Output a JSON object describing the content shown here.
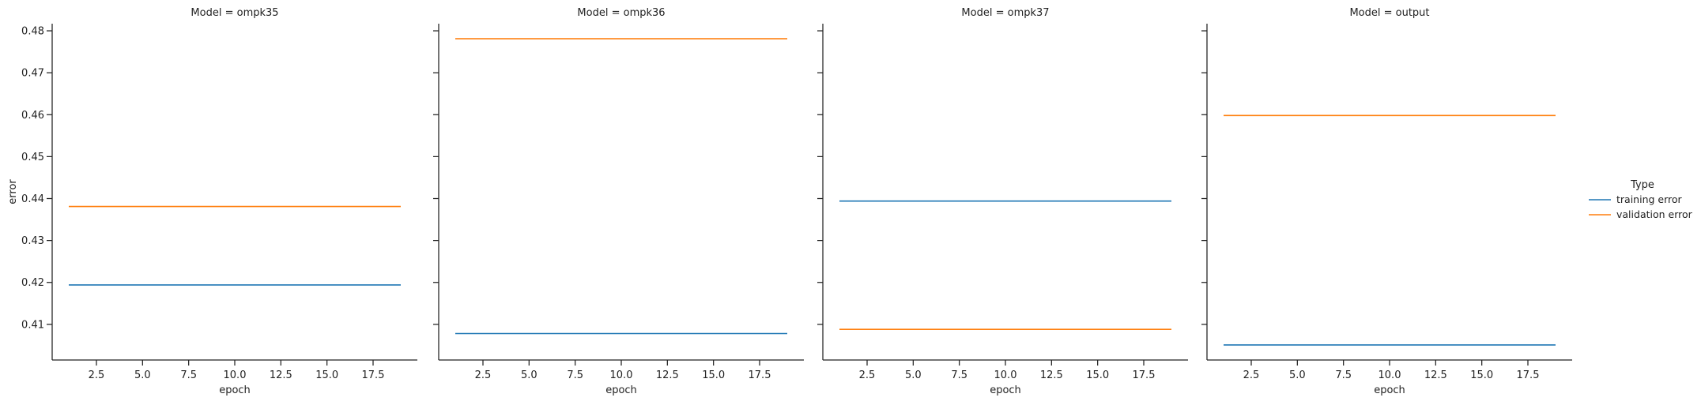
{
  "chart_data": {
    "type": "line",
    "facet_variable": "Model",
    "xlabel": "epoch",
    "ylabel": "error",
    "xlim": [
      0.1,
      19.9
    ],
    "ylim": [
      0.4015,
      0.4817
    ],
    "xticks": [
      2.5,
      5.0,
      7.5,
      10.0,
      12.5,
      15.0,
      17.5
    ],
    "yticks": [
      0.41,
      0.42,
      0.43,
      0.44,
      0.45,
      0.46,
      0.47,
      0.48
    ],
    "legend": {
      "title": "Type",
      "placement": "right",
      "entries": [
        {
          "name": "training error",
          "color": "#1f77b4"
        },
        {
          "name": "validation error",
          "color": "#ff7f0e"
        }
      ]
    },
    "panels": [
      {
        "title": "Model = ompk35",
        "series": [
          {
            "name": "training error",
            "x": [
              1,
              19
            ],
            "y": [
              0.4194,
              0.4194
            ]
          },
          {
            "name": "validation error",
            "x": [
              1,
              19
            ],
            "y": [
              0.4381,
              0.4381
            ]
          }
        ]
      },
      {
        "title": "Model = ompk36",
        "series": [
          {
            "name": "training error",
            "x": [
              1,
              19
            ],
            "y": [
              0.4078,
              0.4078
            ]
          },
          {
            "name": "validation error",
            "x": [
              1,
              19
            ],
            "y": [
              0.4781,
              0.4781
            ]
          }
        ]
      },
      {
        "title": "Model = ompk37",
        "series": [
          {
            "name": "training error",
            "x": [
              1,
              19
            ],
            "y": [
              0.4394,
              0.4394
            ]
          },
          {
            "name": "validation error",
            "x": [
              1,
              19
            ],
            "y": [
              0.4088,
              0.4088
            ]
          }
        ]
      },
      {
        "title": "Model = output",
        "series": [
          {
            "name": "training error",
            "x": [
              1,
              19
            ],
            "y": [
              0.4051,
              0.4051
            ]
          },
          {
            "name": "validation error",
            "x": [
              1,
              19
            ],
            "y": [
              0.4598,
              0.4598
            ]
          }
        ]
      }
    ]
  }
}
